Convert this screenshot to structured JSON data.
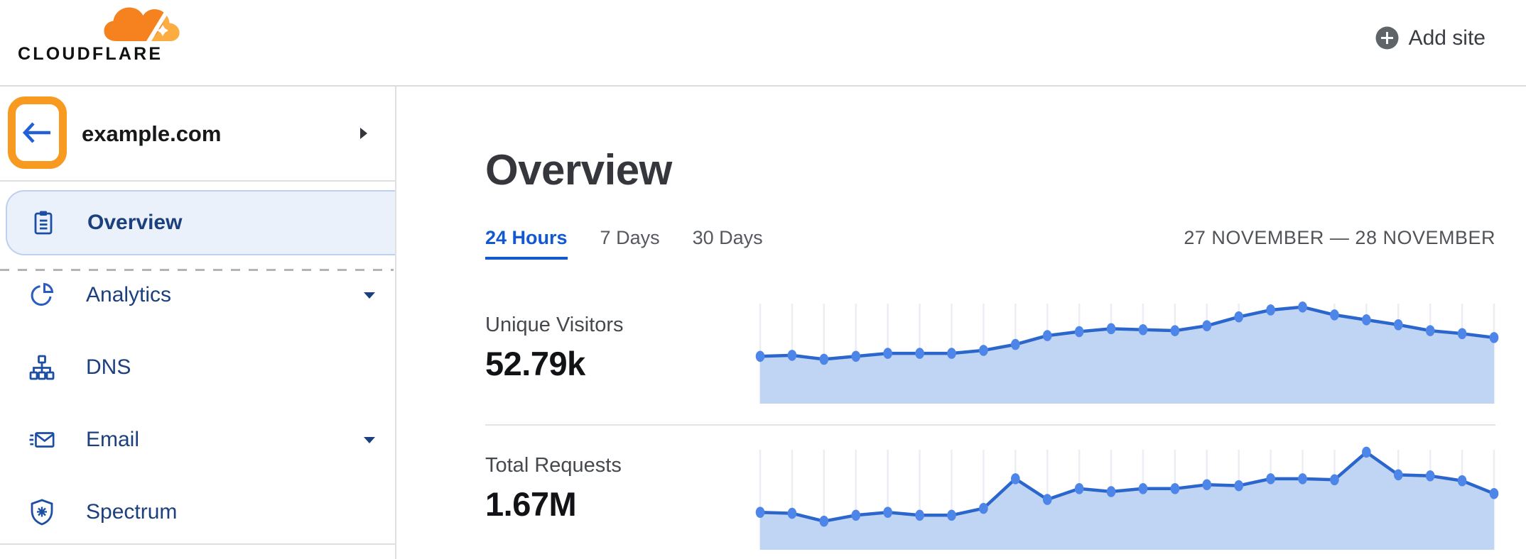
{
  "header": {
    "logo_text": "CLOUDFLARE",
    "add_site": {
      "label": "Add site",
      "icon": "plus-circle-icon"
    }
  },
  "sidebar": {
    "back_button": {
      "icon": "arrow-left-icon",
      "annotated": true,
      "annotation_color": "#F89A20"
    },
    "site_name": "example.com",
    "site_caret_icon": "caret-right-icon",
    "items": [
      {
        "label": "Overview",
        "icon": "clipboard-icon",
        "active": true,
        "caret": false
      },
      {
        "label": "Analytics",
        "icon": "pie-chart-icon",
        "active": false,
        "caret": true
      },
      {
        "label": "DNS",
        "icon": "network-icon",
        "active": false,
        "caret": false
      },
      {
        "label": "Email",
        "icon": "envelope-icon",
        "active": false,
        "caret": true
      },
      {
        "label": "Spectrum",
        "icon": "shield-icon",
        "active": false,
        "caret": false
      }
    ]
  },
  "main": {
    "title": "Overview",
    "tabs": [
      {
        "label": "24 Hours",
        "active": true
      },
      {
        "label": "7 Days",
        "active": false
      },
      {
        "label": "30 Days",
        "active": false
      }
    ],
    "date_range": "27 NOVEMBER — 28 NOVEMBER",
    "stats": [
      {
        "label": "Unique Visitors",
        "value": "52.79k"
      },
      {
        "label": "Total Requests",
        "value": "1.67M"
      }
    ]
  },
  "chart_data": [
    {
      "type": "area",
      "title": "Unique Visitors",
      "total_label": "52.79k",
      "x_unit": "hour of 24-hour window (27 Nov — 28 Nov)",
      "x": [
        0,
        1,
        2,
        3,
        4,
        5,
        6,
        7,
        8,
        9,
        10,
        11,
        12,
        13,
        14,
        15,
        16,
        17,
        18,
        19,
        20,
        21,
        22,
        23
      ],
      "values_relative_pct": [
        48,
        49,
        45,
        48,
        51,
        51,
        51,
        54,
        60,
        69,
        73,
        76,
        75,
        74,
        79,
        88,
        95,
        98,
        90,
        85,
        80,
        74,
        71,
        67
      ],
      "y_axis": "none (sparkline; values are relative heights, 100 = series max)",
      "grid": "vertical gridlines only, one per point",
      "legend": "none"
    },
    {
      "type": "area",
      "title": "Total Requests",
      "total_label": "1.67M",
      "x_unit": "hour of 24-hour window (27 Nov — 28 Nov)",
      "x": [
        0,
        1,
        2,
        3,
        4,
        5,
        6,
        7,
        8,
        9,
        10,
        11,
        12,
        13,
        14,
        15,
        16,
        17,
        18,
        19,
        20,
        21,
        22,
        23
      ],
      "values_relative_pct": [
        38,
        37,
        29,
        35,
        38,
        35,
        35,
        42,
        72,
        51,
        62,
        59,
        62,
        62,
        66,
        65,
        72,
        72,
        71,
        99,
        76,
        75,
        70,
        57
      ],
      "y_axis": "none (sparkline; values are relative heights, 100 = series max)",
      "grid": "vertical gridlines only, one per point",
      "legend": "none"
    }
  ],
  "colors": {
    "brand_orange": "#F6821F",
    "brand_orange_light": "#FBAD41",
    "annotation_orange": "#F89A20",
    "link_blue": "#1259cf",
    "nav_text_blue": "#1c3f7e",
    "icon_blue": "#1c4fa3",
    "active_item_bg": "#eaf1fb",
    "active_item_border": "#bdd0ee",
    "chart_line": "#2b66cc",
    "chart_dot": "#4d86e8",
    "chart_fill": "#c0d4f4",
    "chart_grid": "#ededf4"
  }
}
